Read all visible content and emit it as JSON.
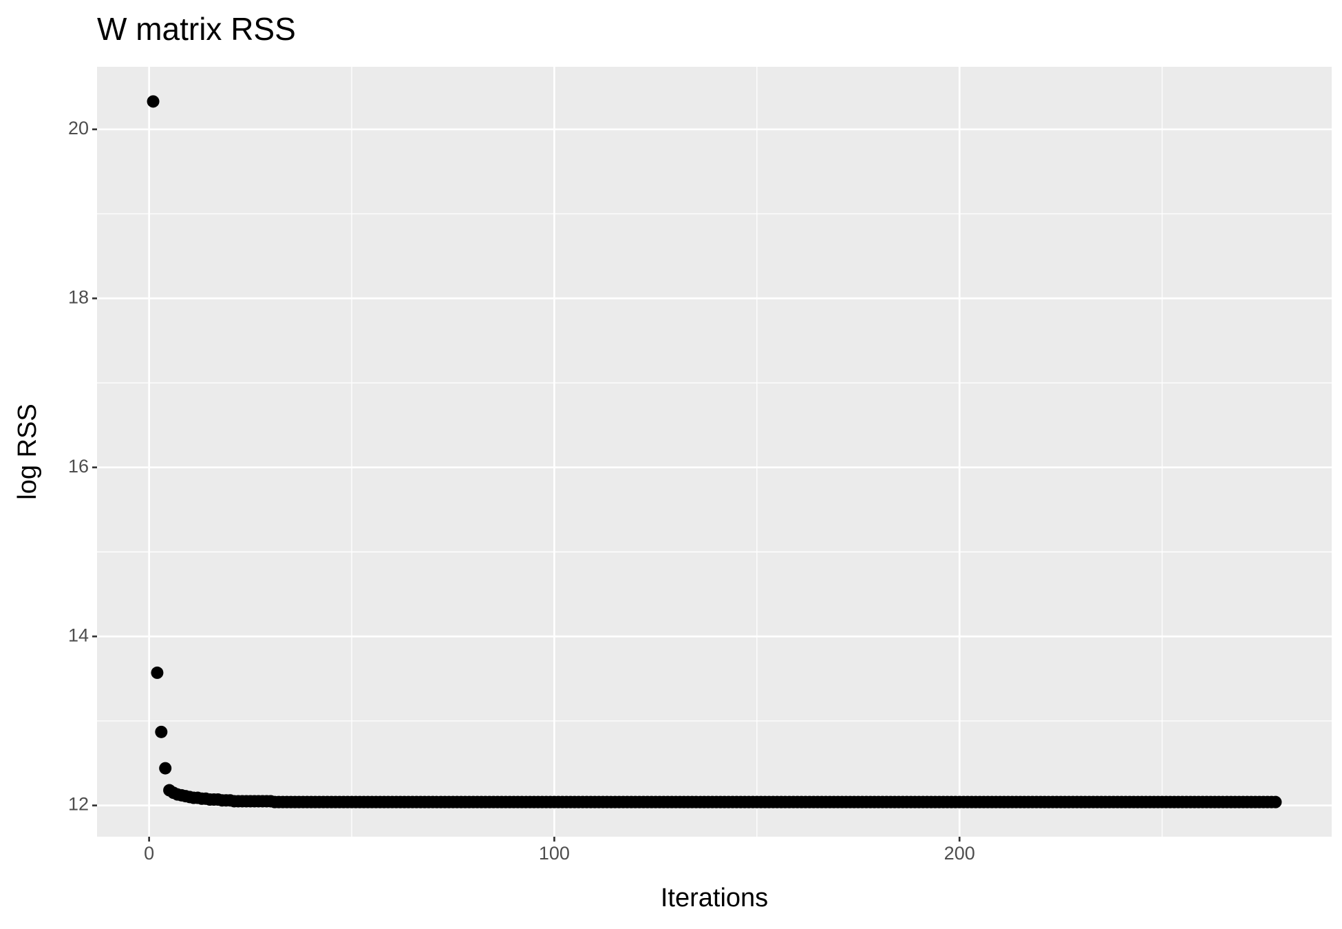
{
  "chart_data": {
    "type": "scatter",
    "title": "W matrix RSS",
    "x_label": "Iterations",
    "y_label": "log RSS",
    "color": "#000000",
    "panel_color": "#ebebeb",
    "grid": true,
    "xlim": [
      -12.85,
      291.85
    ],
    "ylim": [
      11.63,
      20.74
    ],
    "xticks": [
      0,
      100,
      200
    ],
    "yticks": [
      12,
      14,
      16,
      18,
      20
    ],
    "xminor": [
      50,
      150,
      250
    ],
    "yminor": [
      13,
      15,
      17,
      19
    ],
    "x": [
      1,
      2,
      3,
      4,
      5,
      6,
      7,
      8,
      9,
      10,
      11,
      12,
      13,
      14,
      15,
      16,
      17,
      18,
      19,
      20,
      21,
      22,
      23,
      24,
      25,
      26,
      27,
      28,
      29,
      30,
      31,
      32,
      33,
      34,
      35,
      36,
      37,
      38,
      39,
      40,
      41,
      42,
      43,
      44,
      45,
      46,
      47,
      48,
      49,
      50,
      51,
      52,
      53,
      54,
      55,
      56,
      57,
      58,
      59,
      60,
      61,
      62,
      63,
      64,
      65,
      66,
      67,
      68,
      69,
      70,
      71,
      72,
      73,
      74,
      75,
      76,
      77,
      78,
      79,
      80,
      81,
      82,
      83,
      84,
      85,
      86,
      87,
      88,
      89,
      90,
      91,
      92,
      93,
      94,
      95,
      96,
      97,
      98,
      99,
      100,
      101,
      102,
      103,
      104,
      105,
      106,
      107,
      108,
      109,
      110,
      111,
      112,
      113,
      114,
      115,
      116,
      117,
      118,
      119,
      120,
      121,
      122,
      123,
      124,
      125,
      126,
      127,
      128,
      129,
      130,
      131,
      132,
      133,
      134,
      135,
      136,
      137,
      138,
      139,
      140,
      141,
      142,
      143,
      144,
      145,
      146,
      147,
      148,
      149,
      150,
      151,
      152,
      153,
      154,
      155,
      156,
      157,
      158,
      159,
      160,
      161,
      162,
      163,
      164,
      165,
      166,
      167,
      168,
      169,
      170,
      171,
      172,
      173,
      174,
      175,
      176,
      177,
      178,
      179,
      180,
      181,
      182,
      183,
      184,
      185,
      186,
      187,
      188,
      189,
      190,
      191,
      192,
      193,
      194,
      195,
      196,
      197,
      198,
      199,
      200,
      201,
      202,
      203,
      204,
      205,
      206,
      207,
      208,
      209,
      210,
      211,
      212,
      213,
      214,
      215,
      216,
      217,
      218,
      219,
      220,
      221,
      222,
      223,
      224,
      225,
      226,
      227,
      228,
      229,
      230,
      231,
      232,
      233,
      234,
      235,
      236,
      237,
      238,
      239,
      240,
      241,
      242,
      243,
      244,
      245,
      246,
      247,
      248,
      249,
      250,
      251,
      252,
      253,
      254,
      255,
      256,
      257,
      258,
      259,
      260,
      261,
      262,
      263,
      264,
      265,
      266,
      267,
      268,
      269,
      270,
      271,
      272,
      273,
      274,
      275,
      276,
      277,
      278
    ],
    "values": [
      20.33,
      13.57,
      12.87,
      12.44,
      12.18,
      12.15,
      12.13,
      12.12,
      12.11,
      12.1,
      12.09,
      12.09,
      12.08,
      12.08,
      12.07,
      12.07,
      12.07,
      12.06,
      12.06,
      12.06,
      12.05,
      12.05,
      12.05,
      12.05,
      12.05,
      12.05,
      12.05,
      12.05,
      12.05,
      12.05,
      12.04,
      12.04,
      12.04,
      12.04,
      12.04,
      12.04,
      12.04,
      12.04,
      12.04,
      12.04,
      12.04,
      12.04,
      12.04,
      12.04,
      12.04,
      12.04,
      12.04,
      12.04,
      12.04,
      12.04,
      12.04,
      12.04,
      12.04,
      12.04,
      12.04,
      12.04,
      12.04,
      12.04,
      12.04,
      12.04,
      12.04,
      12.04,
      12.04,
      12.04,
      12.04,
      12.04,
      12.04,
      12.04,
      12.04,
      12.04,
      12.04,
      12.04,
      12.04,
      12.04,
      12.04,
      12.04,
      12.04,
      12.04,
      12.04,
      12.04,
      12.04,
      12.04,
      12.04,
      12.04,
      12.04,
      12.04,
      12.04,
      12.04,
      12.04,
      12.04,
      12.04,
      12.04,
      12.04,
      12.04,
      12.04,
      12.04,
      12.04,
      12.04,
      12.04,
      12.04,
      12.04,
      12.04,
      12.04,
      12.04,
      12.04,
      12.04,
      12.04,
      12.04,
      12.04,
      12.04,
      12.04,
      12.04,
      12.04,
      12.04,
      12.04,
      12.04,
      12.04,
      12.04,
      12.04,
      12.04,
      12.04,
      12.04,
      12.04,
      12.04,
      12.04,
      12.04,
      12.04,
      12.04,
      12.04,
      12.04,
      12.04,
      12.04,
      12.04,
      12.04,
      12.04,
      12.04,
      12.04,
      12.04,
      12.04,
      12.04,
      12.04,
      12.04,
      12.04,
      12.04,
      12.04,
      12.04,
      12.04,
      12.04,
      12.04,
      12.04,
      12.04,
      12.04,
      12.04,
      12.04,
      12.04,
      12.04,
      12.04,
      12.04,
      12.04,
      12.04,
      12.04,
      12.04,
      12.04,
      12.04,
      12.04,
      12.04,
      12.04,
      12.04,
      12.04,
      12.04,
      12.04,
      12.04,
      12.04,
      12.04,
      12.04,
      12.04,
      12.04,
      12.04,
      12.04,
      12.04,
      12.04,
      12.04,
      12.04,
      12.04,
      12.04,
      12.04,
      12.04,
      12.04,
      12.04,
      12.04,
      12.04,
      12.04,
      12.04,
      12.04,
      12.04,
      12.04,
      12.04,
      12.04,
      12.04,
      12.04,
      12.04,
      12.04,
      12.04,
      12.04,
      12.04,
      12.04,
      12.04,
      12.04,
      12.04,
      12.04,
      12.04,
      12.04,
      12.04,
      12.04,
      12.04,
      12.04,
      12.04,
      12.04,
      12.04,
      12.04,
      12.04,
      12.04,
      12.04,
      12.04,
      12.04,
      12.04,
      12.04,
      12.04,
      12.04,
      12.04,
      12.04,
      12.04,
      12.04,
      12.04,
      12.04,
      12.04,
      12.04,
      12.04,
      12.04,
      12.04,
      12.04,
      12.04,
      12.04,
      12.04,
      12.04,
      12.04,
      12.04,
      12.04,
      12.04,
      12.04,
      12.04,
      12.04,
      12.04,
      12.04,
      12.04,
      12.04,
      12.04,
      12.04,
      12.04,
      12.04,
      12.04,
      12.04,
      12.04,
      12.04,
      12.04,
      12.04,
      12.04,
      12.04,
      12.04,
      12.04,
      12.04,
      12.04,
      12.04,
      12.04,
      12.04,
      12.04,
      12.04,
      12.04
    ]
  }
}
